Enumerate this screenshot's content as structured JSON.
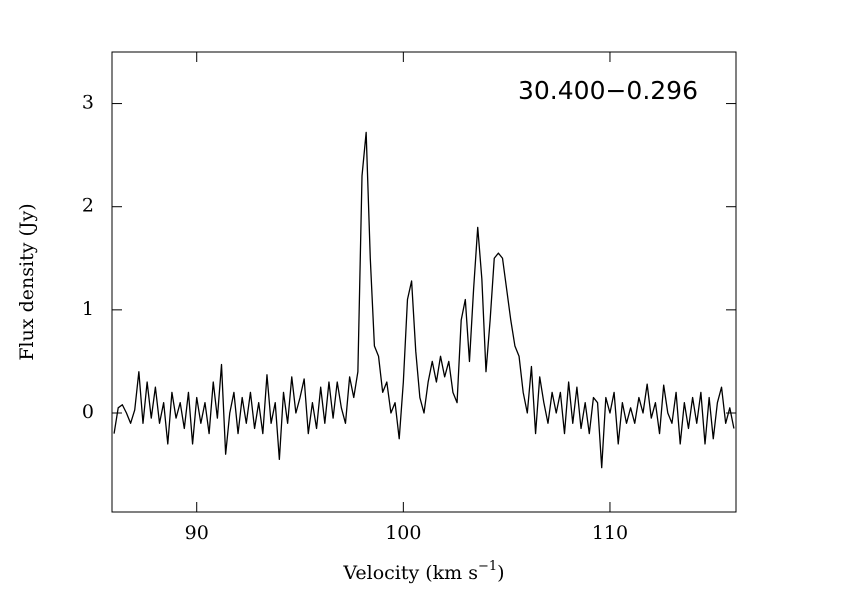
{
  "chart_data": {
    "type": "line",
    "annotation": "30.400−0.296",
    "xlabel": [
      "Velocity (km s",
      "−1",
      ")"
    ],
    "ylabel": "Flux density (Jy)",
    "color": "#000000",
    "xlim": [
      85.9,
      116.1
    ],
    "ylim": [
      -0.96,
      3.5
    ],
    "xticks": [
      90,
      100,
      110
    ],
    "yticks": [
      0,
      1,
      2,
      3
    ],
    "x": [
      86.0,
      86.2,
      86.4,
      86.6,
      86.8,
      87.0,
      87.2,
      87.4,
      87.6,
      87.8,
      88.0,
      88.2,
      88.4,
      88.6,
      88.8,
      89.0,
      89.2,
      89.4,
      89.6,
      89.8,
      90.0,
      90.2,
      90.4,
      90.6,
      90.8,
      91.0,
      91.2,
      91.4,
      91.6,
      91.8,
      92.0,
      92.2,
      92.4,
      92.6,
      92.8,
      93.0,
      93.2,
      93.4,
      93.6,
      93.8,
      94.0,
      94.2,
      94.4,
      94.6,
      94.8,
      95.0,
      95.2,
      95.4,
      95.6,
      95.8,
      96.0,
      96.2,
      96.4,
      96.6,
      96.8,
      97.0,
      97.2,
      97.4,
      97.6,
      97.8,
      98.0,
      98.2,
      98.4,
      98.6,
      98.8,
      99.0,
      99.2,
      99.4,
      99.6,
      99.8,
      100.0,
      100.2,
      100.4,
      100.6,
      100.8,
      101.0,
      101.2,
      101.4,
      101.6,
      101.8,
      102.0,
      102.2,
      102.4,
      102.6,
      102.8,
      103.0,
      103.2,
      103.4,
      103.6,
      103.8,
      104.0,
      104.2,
      104.4,
      104.6,
      104.8,
      105.0,
      105.2,
      105.4,
      105.6,
      105.8,
      106.0,
      106.2,
      106.4,
      106.6,
      106.8,
      107.0,
      107.2,
      107.4,
      107.6,
      107.8,
      108.0,
      108.2,
      108.4,
      108.6,
      108.8,
      109.0,
      109.2,
      109.4,
      109.6,
      109.8,
      110.0,
      110.2,
      110.4,
      110.6,
      110.8,
      111.0,
      111.2,
      111.4,
      111.6,
      111.8,
      112.0,
      112.2,
      112.4,
      112.6,
      112.8,
      113.0,
      113.2,
      113.4,
      113.6,
      113.8,
      114.0,
      114.2,
      114.4,
      114.6,
      114.8,
      115.0,
      115.2,
      115.4,
      115.6,
      115.8,
      116.0
    ],
    "values": [
      -0.2,
      0.05,
      0.08,
      0.0,
      -0.1,
      0.03,
      0.4,
      -0.1,
      0.3,
      -0.05,
      0.25,
      -0.1,
      0.1,
      -0.3,
      0.2,
      -0.05,
      0.1,
      -0.15,
      0.2,
      -0.3,
      0.15,
      -0.1,
      0.1,
      -0.2,
      0.3,
      -0.05,
      0.47,
      -0.4,
      0.0,
      0.2,
      -0.2,
      0.15,
      -0.1,
      0.2,
      -0.15,
      0.1,
      -0.2,
      0.37,
      -0.1,
      0.1,
      -0.45,
      0.2,
      -0.1,
      0.35,
      0.0,
      0.15,
      0.33,
      -0.2,
      0.1,
      -0.15,
      0.25,
      -0.1,
      0.3,
      -0.05,
      0.3,
      0.05,
      -0.1,
      0.35,
      0.15,
      0.4,
      2.3,
      2.72,
      1.5,
      0.65,
      0.55,
      0.2,
      0.3,
      0.0,
      0.1,
      -0.25,
      0.3,
      1.1,
      1.28,
      0.6,
      0.15,
      0.0,
      0.3,
      0.5,
      0.3,
      0.55,
      0.35,
      0.5,
      0.2,
      0.1,
      0.9,
      1.1,
      0.5,
      1.2,
      1.8,
      1.3,
      0.4,
      0.9,
      1.5,
      1.55,
      1.5,
      1.2,
      0.9,
      0.65,
      0.55,
      0.2,
      0.0,
      0.45,
      -0.2,
      0.35,
      0.1,
      -0.1,
      0.2,
      0.0,
      0.2,
      -0.2,
      0.3,
      -0.1,
      0.25,
      -0.15,
      0.1,
      -0.2,
      0.15,
      0.1,
      -0.53,
      0.15,
      0.0,
      0.2,
      -0.3,
      0.1,
      -0.1,
      0.05,
      -0.1,
      0.15,
      0.0,
      0.28,
      -0.05,
      0.1,
      -0.2,
      0.27,
      0.0,
      -0.1,
      0.2,
      -0.3,
      0.1,
      -0.15,
      0.15,
      -0.1,
      0.2,
      -0.3,
      0.15,
      -0.25,
      0.1,
      0.25,
      -0.1,
      0.05,
      -0.15
    ]
  }
}
